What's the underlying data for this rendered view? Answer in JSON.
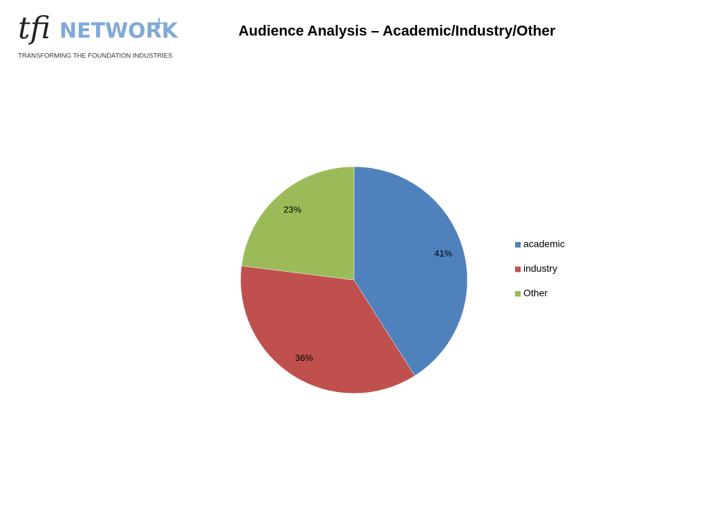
{
  "logo": {
    "mark": "tfi",
    "name": "NETWORK",
    "plus": "+",
    "tagline": "TRANSFORMING THE FOUNDATION INDUSTRIES"
  },
  "chart_data": {
    "type": "pie",
    "title": "Audience Analysis – Academic/Industry/Other",
    "categories": [
      "academic",
      "industry",
      "Other"
    ],
    "values": [
      41,
      36,
      23
    ],
    "value_labels": [
      "41%",
      "36%",
      "23%"
    ],
    "colors": [
      "#4f81bd",
      "#c0504d",
      "#9bbb59"
    ],
    "legend": "right"
  }
}
